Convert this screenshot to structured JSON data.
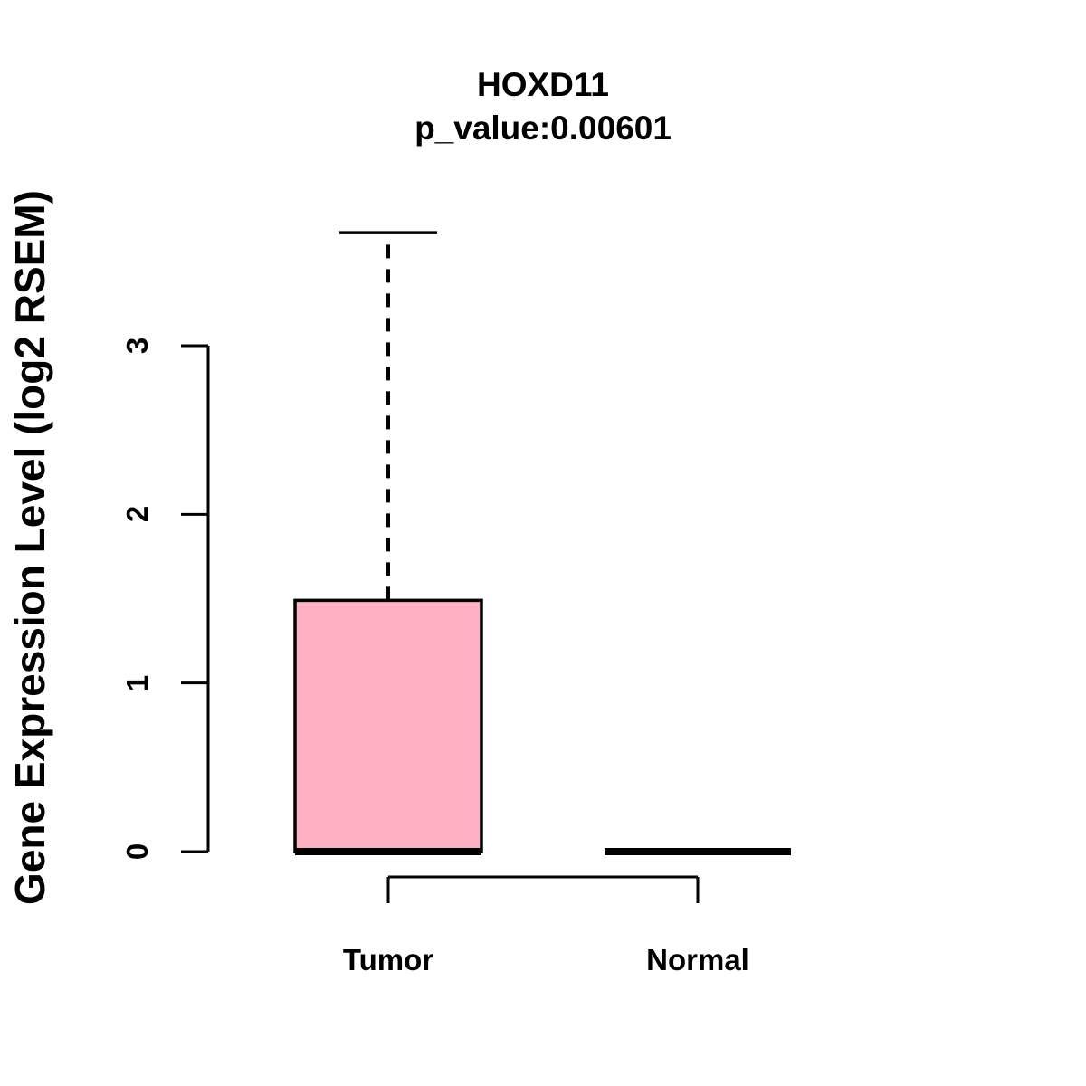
{
  "title": "HOXD11",
  "subtitle": "p_value:0.00601",
  "y_axis": {
    "label": "Gene Expression Level (log2 RSEM)"
  },
  "x_axis": {
    "categories": [
      "Tumor",
      "Normal"
    ]
  },
  "colors": {
    "box_fill": "#FCB0C1",
    "line": "#000000",
    "text": "#000000",
    "background": "#FFFFFF"
  },
  "chart_data": {
    "type": "boxplot",
    "title": "HOXD11",
    "subtitle": "p_value:0.00601",
    "gene": "HOXD11",
    "p_value": 0.00601,
    "ylabel": "Gene Expression Level (log2 RSEM)",
    "xlabel": "",
    "categories": [
      "Tumor",
      "Normal"
    ],
    "yticks": [
      0,
      1,
      2,
      3
    ],
    "ylim": [
      0,
      3.75
    ],
    "grid": false,
    "legend": false,
    "boxes": [
      {
        "category": "Tumor",
        "lower_whisker": 0,
        "q1": 0,
        "median": 0,
        "q3": 1.49,
        "upper_whisker": 3.67,
        "outliers": [],
        "fill": "#FCB0C1"
      },
      {
        "category": "Normal",
        "lower_whisker": 0,
        "q1": 0,
        "median": 0,
        "q3": 0,
        "upper_whisker": 0,
        "outliers": [],
        "fill": "#FCB0C1"
      }
    ]
  }
}
